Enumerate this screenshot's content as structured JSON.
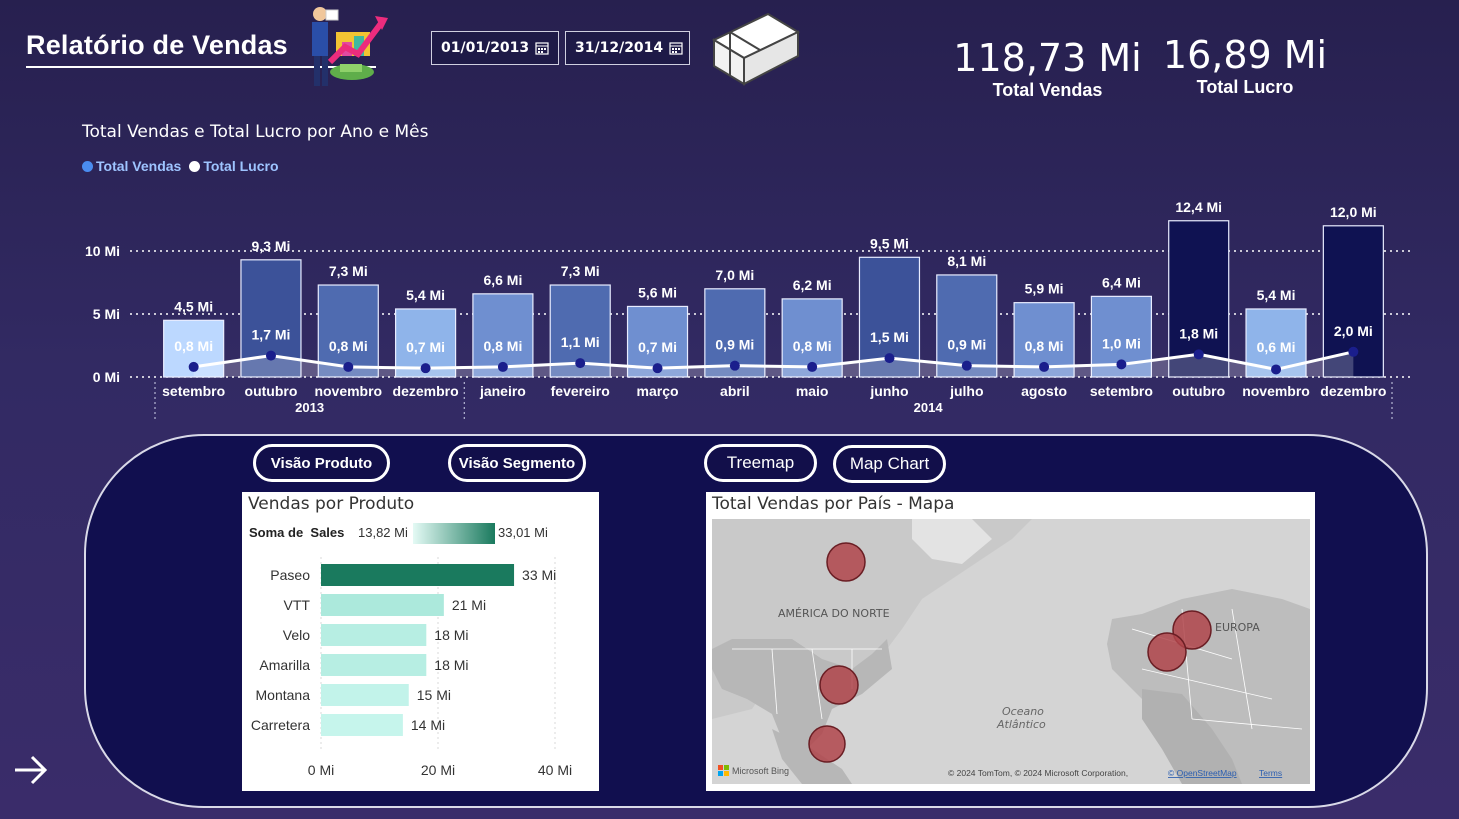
{
  "header": {
    "title": "Relatório de Vendas",
    "start_date": "01/01/2013",
    "end_date": "31/12/2014"
  },
  "kpis": [
    {
      "value": "118,73 Mi",
      "label": "Total Vendas"
    },
    {
      "value": "16,89 Mi",
      "label": "Total Lucro"
    }
  ],
  "main_chart": {
    "title": "Total Vendas e Total Lucro por Ano e Mês",
    "legend": [
      {
        "name": "Total Vendas",
        "color": "#4a8cf0"
      },
      {
        "name": "Total Lucro",
        "color": "#ffffff"
      }
    ]
  },
  "chart_data": [
    {
      "type": "bar",
      "title": "Total Vendas e Total Lucro por Ano e Mês",
      "categories": [
        "setembro",
        "outubro",
        "novembro",
        "dezembro",
        "janeiro",
        "fevereiro",
        "março",
        "abril",
        "maio",
        "junho",
        "julho",
        "agosto",
        "setembro",
        "outubro",
        "novembro",
        "dezembro"
      ],
      "years": [
        {
          "label": "2013",
          "span": [
            0,
            3
          ]
        },
        {
          "label": "2014",
          "span": [
            4,
            15
          ]
        }
      ],
      "y_ticks": [
        "0 Mi",
        "5 Mi",
        "10 Mi"
      ],
      "ylim": [
        0,
        13
      ],
      "series": [
        {
          "name": "Total Vendas",
          "values": [
            4.5,
            9.3,
            7.3,
            5.4,
            6.6,
            7.3,
            5.6,
            7.0,
            6.2,
            9.5,
            8.1,
            5.9,
            6.4,
            12.4,
            5.4,
            12.0
          ],
          "labels": [
            "4,5 Mi",
            "9,3 Mi",
            "7,3 Mi",
            "5,4 Mi",
            "6,6 Mi",
            "7,3 Mi",
            "5,6 Mi",
            "7,0 Mi",
            "6,2 Mi",
            "9,5 Mi",
            "8,1 Mi",
            "5,9 Mi",
            "6,4 Mi",
            "12,4 Mi",
            "5,4 Mi",
            "12,0 Mi"
          ]
        },
        {
          "name": "Total Lucro",
          "values": [
            0.8,
            1.7,
            0.8,
            0.7,
            0.8,
            1.1,
            0.7,
            0.9,
            0.8,
            1.5,
            0.9,
            0.8,
            1.0,
            1.8,
            0.6,
            2.0
          ],
          "labels": [
            "0,8 Mi",
            "1,7 Mi",
            "0,8 Mi",
            "0,7 Mi",
            "0,8 Mi",
            "1,1 Mi",
            "0,7 Mi",
            "0,9 Mi",
            "0,8 Mi",
            "1,5 Mi",
            "0,9 Mi",
            "0,8 Mi",
            "1,0 Mi",
            "1,8 Mi",
            "0,6 Mi",
            "2,0 Mi"
          ]
        }
      ],
      "grid": true
    },
    {
      "type": "bar",
      "title": "Vendas por Produto",
      "categories": [
        "Paseo",
        "VTT",
        "Velo",
        "Amarilla",
        "Montana",
        "Carretera"
      ],
      "values": [
        33,
        21,
        18,
        18,
        15,
        14
      ],
      "labels": [
        "33 Mi",
        "21 Mi",
        "18 Mi",
        "18 Mi",
        "15 Mi",
        "14 Mi"
      ],
      "x_ticks": [
        "0 Mi",
        "20 Mi",
        "40 Mi"
      ],
      "xlim": [
        0,
        40
      ],
      "color_scale": {
        "label": "Soma de  Sales",
        "min": "13,82 Mi",
        "max": "33,01 Mi"
      }
    }
  ],
  "buttons": {
    "visao_produto": "Visão Produto",
    "visao_segmento": "Visão Segmento",
    "treemap": "Treemap",
    "map_chart": "Map Chart"
  },
  "map": {
    "title": "Total Vendas por País - Mapa",
    "region_north_america": "AMÉRICA DO NORTE",
    "region_europe": "EUROPA",
    "ocean_line1": "Oceano",
    "ocean_line2": "Atlântico",
    "bing": "Microsoft Bing",
    "attribution": "© 2024 TomTom, © 2024 Microsoft Corporation,",
    "osm": "© OpenStreetMap",
    "terms": "Terms"
  },
  "colors": {
    "bar_shades": [
      "#bcd8ff",
      "#3c5299",
      "#4f6bb0",
      "#6f8fd0",
      "#2b2f7a",
      "#0f1252",
      "#1f1a5c"
    ],
    "map_bubble": "#b0454b",
    "product_bar_dark": "#1a7a5e",
    "product_bar_light": "#c6f5ec"
  }
}
